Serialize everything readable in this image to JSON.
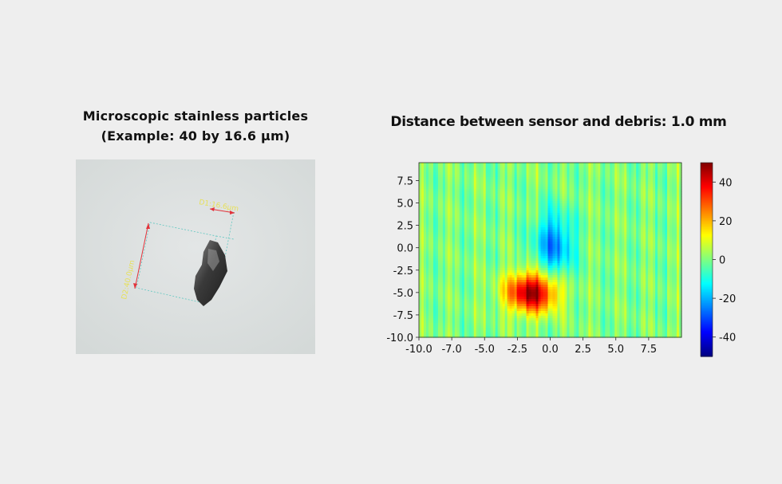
{
  "left_panel": {
    "title_line1": "Microscopic stainless particles",
    "title_line2": "(Example: 40 by 16.6 µm)",
    "photo": {
      "label_width": "D1:16.6µm",
      "label_length": "D2:40.0µm"
    }
  },
  "chart_data": {
    "type": "heatmap",
    "title": "Distance between sensor and debris: 1.0 mm",
    "xlabel": "",
    "ylabel": "",
    "xlim": [
      -10.0,
      10.0
    ],
    "ylim": [
      -10.0,
      9.5
    ],
    "x_ticks": [
      "-10.0",
      "-7.0",
      "-5.0",
      "-2.5",
      "0.0",
      "2.5",
      "5.0",
      "7.5"
    ],
    "y_ticks": [
      "7.5",
      "5.0",
      "2.5",
      "0.0",
      "-2.5",
      "-5.0",
      "-7.5",
      "-10.0"
    ],
    "colorbar": {
      "min": -50,
      "max": 50,
      "ticks": [
        40,
        20,
        0,
        -20,
        -40
      ],
      "colormap": "jet"
    },
    "features": [
      {
        "kind": "positive_peak",
        "x": -1.4,
        "y": -5.0,
        "value": 48
      },
      {
        "kind": "negative_trough",
        "x": 0.3,
        "y": 0.3,
        "value": -24
      }
    ],
    "background_value": 0
  }
}
